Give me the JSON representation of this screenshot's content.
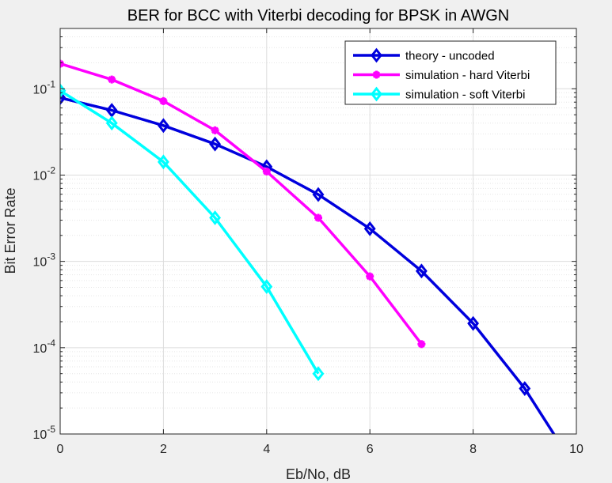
{
  "chart_data": {
    "type": "line",
    "title": "BER for BCC with Viterbi decoding for BPSK in AWGN",
    "xlabel": "Eb/No, dB",
    "ylabel": "Bit Error Rate",
    "xlim": [
      0,
      10
    ],
    "ylim": [
      1e-05,
      0.5
    ],
    "yscale": "log",
    "grid": true,
    "legend_position": "top-right",
    "x_ticks": [
      0,
      2,
      4,
      6,
      8,
      10
    ],
    "y_ticks": [
      {
        "value": 1e-05,
        "base": "10",
        "exp": "-5"
      },
      {
        "value": 0.0001,
        "base": "10",
        "exp": "-4"
      },
      {
        "value": 0.001,
        "base": "10",
        "exp": "-3"
      },
      {
        "value": 0.01,
        "base": "10",
        "exp": "-2"
      },
      {
        "value": 0.1,
        "base": "10",
        "exp": "-1"
      }
    ],
    "series": [
      {
        "name": "theory - uncoded",
        "color": "#0000dd",
        "marker": "diamond",
        "x": [
          0,
          1,
          2,
          3,
          4,
          5,
          6,
          7,
          8,
          9,
          10
        ],
        "y": [
          0.0786,
          0.0563,
          0.0375,
          0.0229,
          0.0125,
          0.00595,
          0.00239,
          0.000773,
          0.000191,
          3.36e-05,
          3.9e-06
        ],
        "marker_x": [
          0,
          1,
          2,
          3,
          4,
          5,
          6,
          7,
          8,
          9
        ]
      },
      {
        "name": "simulation - hard Viterbi",
        "color": "#ff00ff",
        "marker": "star",
        "x": [
          0,
          1,
          2,
          3,
          4,
          5,
          6,
          7
        ],
        "y": [
          0.195,
          0.128,
          0.072,
          0.033,
          0.011,
          0.0032,
          0.00067,
          0.00011
        ]
      },
      {
        "name": "simulation - soft Viterbi",
        "color": "#00ffff",
        "marker": "diamond",
        "x": [
          0,
          1,
          2,
          3,
          4,
          5
        ],
        "y": [
          0.095,
          0.04,
          0.0142,
          0.0032,
          0.00051,
          5e-05
        ]
      }
    ]
  }
}
